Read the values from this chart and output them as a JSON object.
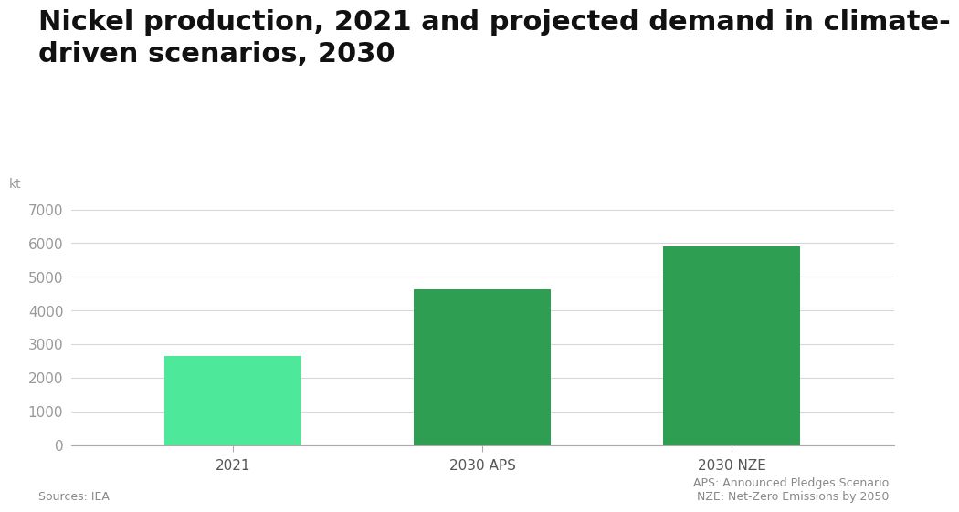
{
  "title": "Nickel production, 2021 and projected demand in climate-\ndriven scenarios, 2030",
  "categories": [
    "2021",
    "2030 APS",
    "2030 NZE"
  ],
  "values": [
    2650,
    4620,
    5900
  ],
  "bar_colors": [
    "#4de89a",
    "#2e9e52",
    "#2e9e52"
  ],
  "ylabel": "kt",
  "ylim": [
    0,
    7500
  ],
  "yticks": [
    0,
    1000,
    2000,
    3000,
    4000,
    5000,
    6000,
    7000
  ],
  "background_color": "#ffffff",
  "grid_color": "#d8d8d8",
  "title_fontsize": 22,
  "tick_fontsize": 11,
  "source_text": "Sources: IEA",
  "footnote_text": "APS: Announced Pledges Scenario\nNZE: Net-Zero Emissions by 2050",
  "ylabel_fontsize": 10,
  "bar_width": 0.55
}
